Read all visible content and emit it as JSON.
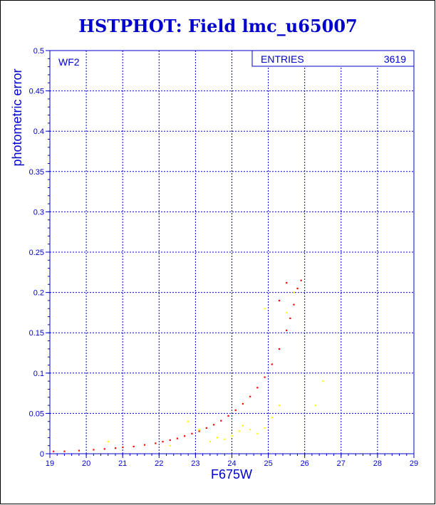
{
  "title": "HSTPHOT: Field lmc_u65007",
  "chart_data": {
    "type": "scatter",
    "title": "HSTPHOT: Field lmc_u65007",
    "panel_label": "WF2",
    "xlabel": "F675W",
    "ylabel": "photometric error",
    "xlim": [
      19,
      29
    ],
    "ylim": [
      0,
      0.5
    ],
    "x_ticks": [
      "19",
      "20",
      "21",
      "22",
      "23",
      "24",
      "25",
      "26",
      "27",
      "28",
      "29"
    ],
    "y_ticks": [
      "0",
      "0.05",
      "0.1",
      "0.15",
      "0.2",
      "0.25",
      "0.3",
      "0.35",
      "0.4",
      "0.45",
      "0.5"
    ],
    "grid": true,
    "stats_box": {
      "label": "ENTRIES",
      "value": "3619"
    },
    "series": [
      {
        "color": "#ff0000",
        "points": [
          [
            19.1,
            0.003
          ],
          [
            19.4,
            0.003
          ],
          [
            19.8,
            0.004
          ],
          [
            20.2,
            0.005
          ],
          [
            20.5,
            0.006
          ],
          [
            20.8,
            0.007
          ],
          [
            21.0,
            0.008
          ],
          [
            21.3,
            0.009
          ],
          [
            21.6,
            0.011
          ],
          [
            21.9,
            0.013
          ],
          [
            22.1,
            0.015
          ],
          [
            22.3,
            0.017
          ],
          [
            22.5,
            0.019
          ],
          [
            22.7,
            0.022
          ],
          [
            22.9,
            0.025
          ],
          [
            23.1,
            0.028
          ],
          [
            23.3,
            0.032
          ],
          [
            23.5,
            0.036
          ],
          [
            23.7,
            0.041
          ],
          [
            23.9,
            0.047
          ],
          [
            24.1,
            0.054
          ],
          [
            24.3,
            0.062
          ],
          [
            24.5,
            0.071
          ],
          [
            24.7,
            0.082
          ],
          [
            24.9,
            0.095
          ],
          [
            25.1,
            0.111
          ],
          [
            25.3,
            0.13
          ],
          [
            25.5,
            0.153
          ],
          [
            25.6,
            0.168
          ],
          [
            25.7,
            0.185
          ],
          [
            25.8,
            0.205
          ],
          [
            25.9,
            0.215
          ],
          [
            25.5,
            0.212
          ],
          [
            25.3,
            0.19
          ]
        ]
      },
      {
        "color": "#ffff00",
        "points": [
          [
            20.6,
            0.015
          ],
          [
            22.3,
            0.01
          ],
          [
            23.4,
            0.015
          ],
          [
            23.6,
            0.02
          ],
          [
            23.8,
            0.018
          ],
          [
            24.0,
            0.022
          ],
          [
            24.2,
            0.028
          ],
          [
            24.3,
            0.035
          ],
          [
            24.5,
            0.03
          ],
          [
            24.7,
            0.025
          ],
          [
            24.9,
            0.032
          ],
          [
            25.1,
            0.045
          ],
          [
            25.3,
            0.06
          ],
          [
            23.1,
            0.03
          ],
          [
            22.8,
            0.04
          ],
          [
            25.5,
            0.175
          ],
          [
            24.9,
            0.18
          ],
          [
            25.7,
            0.2
          ],
          [
            26.3,
            0.06
          ],
          [
            26.5,
            0.09
          ]
        ]
      }
    ]
  }
}
